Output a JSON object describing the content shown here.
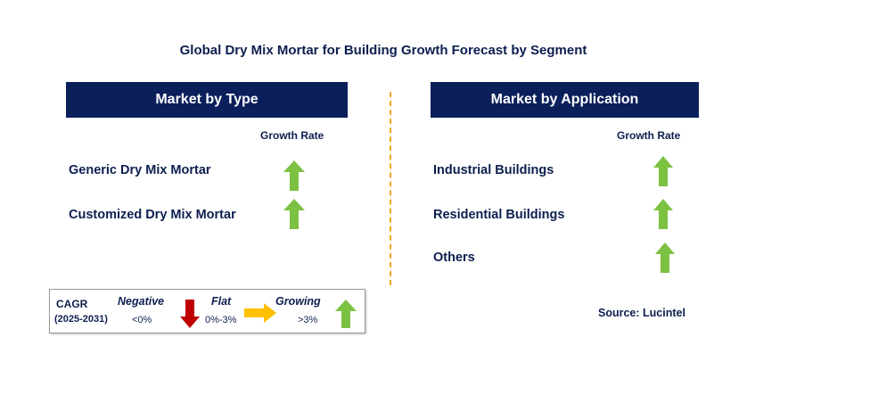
{
  "title": "Global Dry Mix Mortar for Building Growth Forecast by Segment",
  "left_panel": {
    "header": "Market by Type",
    "column_label": "Growth Rate",
    "items": [
      {
        "label": "Generic Dry Mix Mortar",
        "trend": "growing"
      },
      {
        "label": "Customized Dry Mix Mortar",
        "trend": "growing"
      }
    ]
  },
  "right_panel": {
    "header": "Market by Application",
    "column_label": "Growth Rate",
    "items": [
      {
        "label": "Industrial Buildings",
        "trend": "growing"
      },
      {
        "label": "Residential Buildings",
        "trend": "growing"
      },
      {
        "label": "Others",
        "trend": "growing"
      }
    ]
  },
  "legend": {
    "cagr_label": "CAGR",
    "period": "(2025-2031)",
    "negative_label": "Negative",
    "negative_range": "<0%",
    "flat_label": "Flat",
    "flat_range": "0%-3%",
    "growing_label": "Growing",
    "growing_range": ">3%"
  },
  "source": "Source: Lucintel",
  "colors": {
    "header_bg": "#0b1f5b",
    "text": "#0d1f4f",
    "growing_arrow": "#7dc142",
    "negative_arrow": "#c00000",
    "flat_arrow": "#ffc000",
    "divider": "#f5a623"
  }
}
